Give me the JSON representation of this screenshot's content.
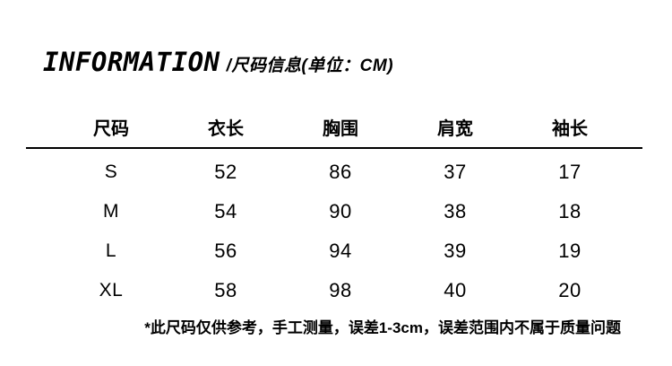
{
  "page": {
    "background_color": "#ffffff",
    "text_color": "#000000"
  },
  "header": {
    "title": "INFORMATION",
    "subtitle": "/尺码信息(单位：CM)"
  },
  "size_table": {
    "columns": [
      "尺码",
      "衣长",
      "胸围",
      "肩宽",
      "袖长"
    ],
    "rows": [
      {
        "size": "S",
        "values": [
          "52",
          "86",
          "37",
          "17"
        ]
      },
      {
        "size": "M",
        "values": [
          "54",
          "90",
          "38",
          "18"
        ]
      },
      {
        "size": "L",
        "values": [
          "56",
          "94",
          "39",
          "19"
        ]
      },
      {
        "size": "XL",
        "values": [
          "58",
          "98",
          "40",
          "20"
        ]
      }
    ]
  },
  "footnote": {
    "text": "*此尺码仅供参考，手工测量，误差1-3cm，误差范围内不属于质量问题"
  }
}
